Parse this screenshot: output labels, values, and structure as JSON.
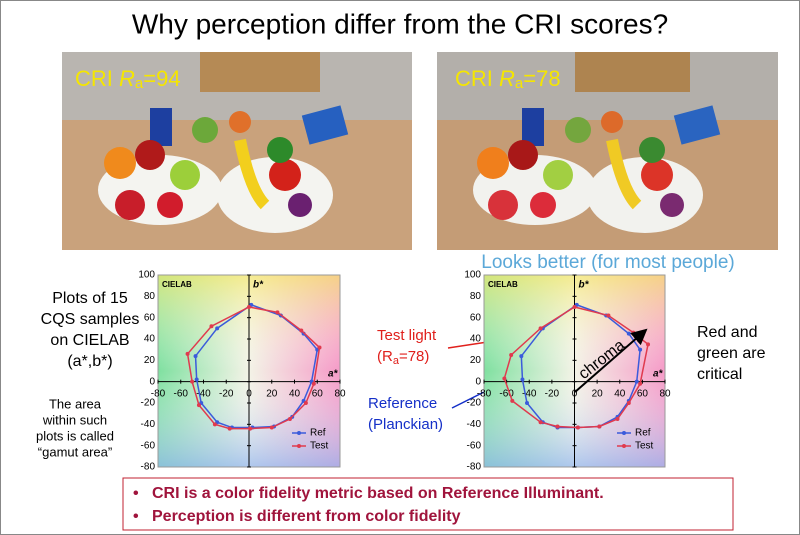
{
  "title": "Why perception differ from the CRI scores?",
  "photos": [
    {
      "label": [
        "CRI ",
        "R",
        "a",
        "=94"
      ]
    },
    {
      "label": [
        "CRI ",
        "R",
        "a",
        "=78"
      ]
    }
  ],
  "caption_right": "Looks better (for most people)",
  "left_note": [
    "Plots of 15",
    "CQS samples",
    "on CIELAB",
    "(a*,b*)"
  ],
  "area_note": [
    "The area",
    "within such",
    "plots is called",
    "“gamut area”"
  ],
  "test_light": [
    "Test light",
    "(R",
    "a",
    "=78)"
  ],
  "reference": [
    "Reference",
    "(Planckian)"
  ],
  "chroma": "chroma",
  "critical": [
    "Red and",
    "green are",
    "critical"
  ],
  "bullets": [
    "CRI is a color fidelity metric based on Reference Illuminant.",
    "Perception is different from color fidelity"
  ],
  "chart_data": [
    {
      "type": "line",
      "label": "CIELAB",
      "x_axis_label": "a*",
      "y_axis_label": "b*",
      "xlim": [
        -80,
        80
      ],
      "ylim": [
        -80,
        100
      ],
      "xticks": [
        -80,
        -60,
        -40,
        -20,
        0,
        20,
        40,
        60,
        80
      ],
      "yticks": [
        -80,
        -60,
        -40,
        -20,
        0,
        20,
        40,
        60,
        80,
        100
      ],
      "series": [
        {
          "name": "Ref",
          "color": "#3b5bdb",
          "x": [
            2,
            28,
            48,
            60,
            55,
            48,
            38,
            22,
            3,
            -15,
            -28,
            -42,
            -46,
            -47,
            -28
          ],
          "y": [
            72,
            62,
            45,
            30,
            0,
            -18,
            -33,
            -42,
            -43,
            -43,
            -38,
            -20,
            2,
            24,
            50
          ]
        },
        {
          "name": "Test",
          "color": "#e03a4e",
          "x": [
            0,
            25,
            46,
            62,
            57,
            50,
            36,
            20,
            1,
            -17,
            -30,
            -44,
            -50,
            -54,
            -33
          ],
          "y": [
            70,
            65,
            48,
            32,
            -2,
            -20,
            -35,
            -43,
            -44,
            -44,
            -40,
            -22,
            0,
            26,
            52
          ]
        }
      ]
    },
    {
      "type": "line",
      "label": "CIELAB",
      "x_axis_label": "a*",
      "y_axis_label": "b*",
      "xlim": [
        -80,
        80
      ],
      "ylim": [
        -80,
        100
      ],
      "xticks": [
        -80,
        -60,
        -40,
        -20,
        0,
        20,
        40,
        60,
        80
      ],
      "yticks": [
        -80,
        -60,
        -40,
        -20,
        0,
        20,
        40,
        60,
        80,
        100
      ],
      "series": [
        {
          "name": "Ref",
          "color": "#3b5bdb",
          "x": [
            2,
            28,
            48,
            58,
            55,
            48,
            38,
            22,
            3,
            -15,
            -28,
            -42,
            -46,
            -47,
            -28
          ],
          "y": [
            72,
            62,
            45,
            30,
            0,
            -18,
            -33,
            -42,
            -43,
            -43,
            -38,
            -20,
            2,
            24,
            50
          ]
        },
        {
          "name": "Test",
          "color": "#e03a4e",
          "x": [
            0,
            30,
            52,
            65,
            58,
            48,
            38,
            22,
            3,
            -15,
            -30,
            -55,
            -62,
            -56,
            -30
          ],
          "y": [
            70,
            62,
            46,
            35,
            -2,
            -20,
            -35,
            -42,
            -43,
            -42,
            -38,
            -18,
            3,
            25,
            50
          ]
        }
      ]
    }
  ]
}
